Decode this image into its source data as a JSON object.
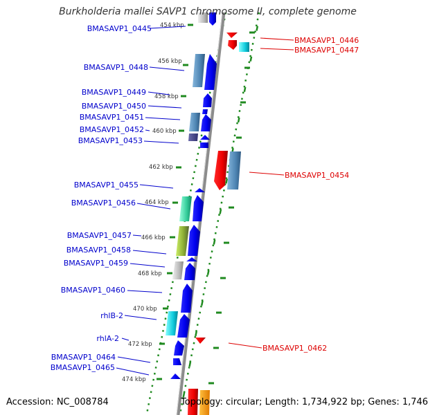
{
  "title": "Burkholderia mallei SAVP1 chromosome II, complete genome",
  "accession": "Accession: NC_008784",
  "summary": "Topology: circular; Length: 1,734,922 bp; Genes: 1,746",
  "colors": {
    "forward_label": "#0000cc",
    "reverse_label": "#dd0000",
    "backbone": "#8c8c8c",
    "tick": "#1f8a1f"
  },
  "ticks": [
    "454 kbp",
    "456 kbp",
    "458 kbp",
    "460 kbp",
    "462 kbp",
    "464 kbp",
    "466 kbp",
    "468 kbp",
    "470 kbp",
    "472 kbp",
    "474 kbp"
  ],
  "forward_genes": [
    "BMASAVP1_0445",
    "BMASAVP1_0448",
    "BMASAVP1_0449",
    "BMASAVP1_0450",
    "BMASAVP1_0451",
    "BMASAVP1_0452",
    "BMASAVP1_0453",
    "BMASAVP1_0455",
    "BMASAVP1_0456",
    "BMASAVP1_0457",
    "BMASAVP1_0458",
    "BMASAVP1_0459",
    "BMASAVP1_0460",
    "rhlB-2",
    "rhlA-2",
    "BMASAVP1_0464",
    "BMASAVP1_0465"
  ],
  "reverse_genes": [
    "BMASAVP1_0446",
    "BMASAVP1_0447",
    "BMASAVP1_0454",
    "BMASAVP1_0462"
  ]
}
